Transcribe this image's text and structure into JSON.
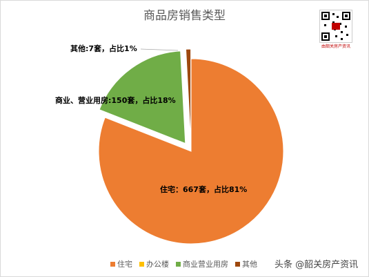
{
  "chart_data": {
    "type": "pie",
    "title": "商品房销售类型",
    "slices": [
      {
        "name": "住宅",
        "value": 667,
        "percent": 81,
        "color": "#ed7d31",
        "label": "住宅：667套，占比81%",
        "exploded": false
      },
      {
        "name": "办公楼",
        "value": 0,
        "percent": 0,
        "color": "#ffc000",
        "label": "",
        "exploded": false
      },
      {
        "name": "商业营业用房",
        "value": 150,
        "percent": 18,
        "color": "#70ad47",
        "label": "商业、营业用房:150套，占比18%",
        "exploded": true
      },
      {
        "name": "其他",
        "value": 7,
        "percent": 1,
        "color": "#9e480e",
        "label": "其他:7套，占比1%",
        "exploded": true
      }
    ],
    "legend": [
      "住宅",
      "办公楼",
      "商业营业用房",
      "其他"
    ],
    "legend_position": "bottom"
  },
  "branding": {
    "qr_caption": "由韶关房产资讯",
    "watermark": "头条 @韶关房产资讯"
  }
}
